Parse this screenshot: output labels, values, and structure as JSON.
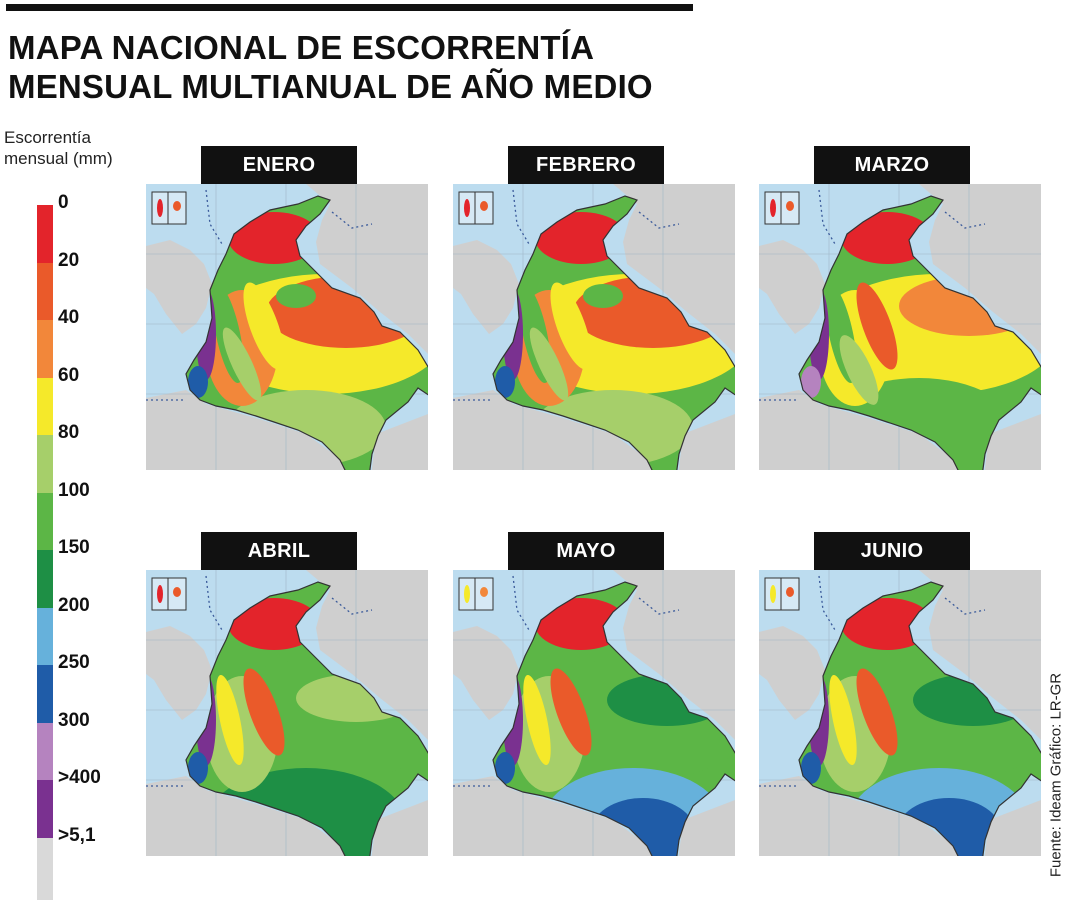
{
  "title": {
    "line1": "MAPA NACIONAL DE ESCORRENTÍA",
    "line2": "MENSUAL MULTIANUAL DE AÑO MEDIO"
  },
  "legend": {
    "title_line1": "Escorrentía",
    "title_line2": "mensual (mm)",
    "colors": [
      "#e3242b",
      "#ea5a2a",
      "#f2873a",
      "#f5e92a",
      "#a6cf6a",
      "#5cb646",
      "#1e8f45",
      "#66b1db",
      "#1f5ca8",
      "#b583bf",
      "#7a3190",
      "#d9d9d9"
    ],
    "labels": [
      "0",
      "20",
      "40",
      "60",
      "80",
      "100",
      "150",
      "200",
      "250",
      "300",
      ">400",
      ">5,1"
    ]
  },
  "map_colors": {
    "sea": "#bcdcef",
    "land": "#cfcfcf",
    "border": "#333333",
    "maritime_line": "#3a5a9a"
  },
  "maps": [
    {
      "month": "ENERO",
      "pattern": "dry"
    },
    {
      "month": "FEBRERO",
      "pattern": "dry"
    },
    {
      "month": "MARZO",
      "pattern": "transition"
    },
    {
      "month": "ABRIL",
      "pattern": "wet"
    },
    {
      "month": "MAYO",
      "pattern": "very-wet"
    },
    {
      "month": "JUNIO",
      "pattern": "very-wet"
    }
  ],
  "credits": {
    "text": "Fuente: Ideam    Gráfico: LR-GR"
  }
}
